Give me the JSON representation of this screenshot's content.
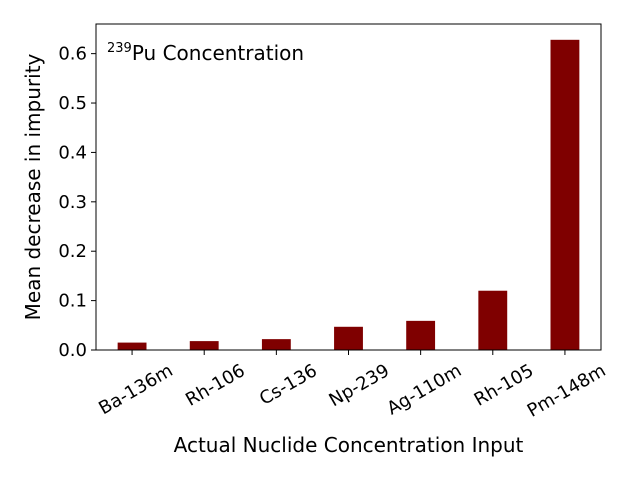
{
  "chart_data": {
    "type": "bar",
    "title": "",
    "annotation": {
      "superscript": "239",
      "text": "Pu Concentration"
    },
    "xlabel": "Actual Nuclide Concentration Input",
    "ylabel": "Mean decrease in impurity",
    "categories": [
      "Ba-136m",
      "Rh-106",
      "Cs-136",
      "Np-239",
      "Ag-110m",
      "Rh-105",
      "Pm-148m"
    ],
    "values": [
      0.015,
      0.018,
      0.022,
      0.047,
      0.059,
      0.12,
      0.628
    ],
    "ylim": [
      0,
      0.66
    ],
    "yticks": [
      "0.0",
      "0.1",
      "0.2",
      "0.3",
      "0.4",
      "0.5",
      "0.6"
    ],
    "bar_color": "#7f0000",
    "grid": false,
    "legend": "none"
  }
}
